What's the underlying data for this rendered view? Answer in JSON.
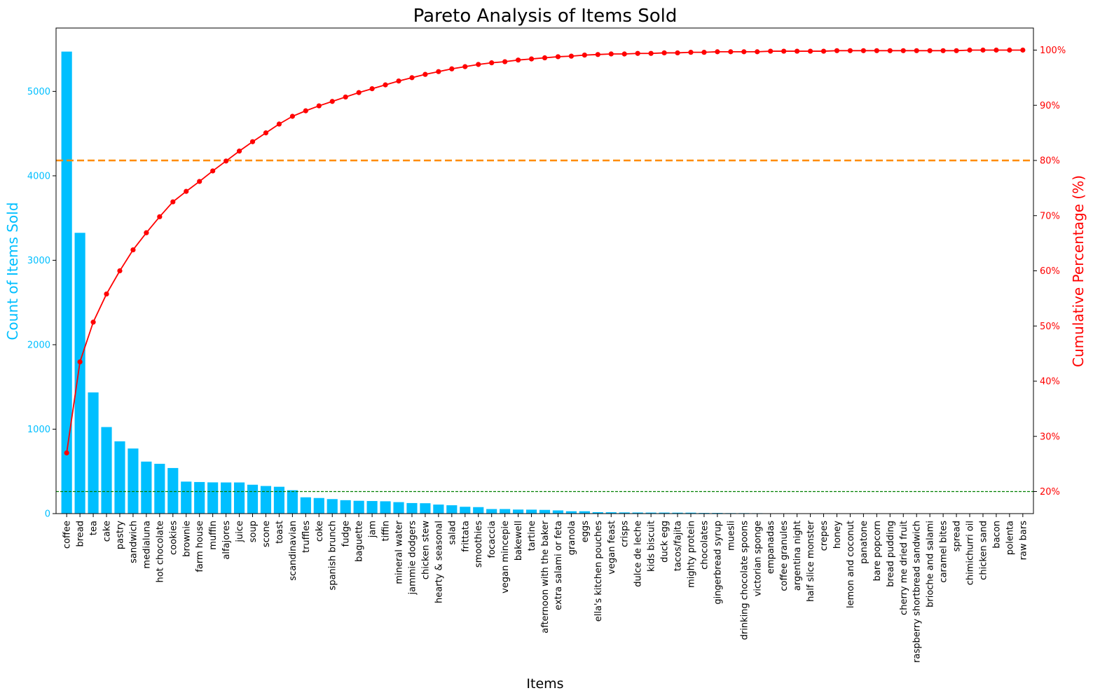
{
  "chart_data": {
    "type": "bar",
    "title": "Pareto Analysis of Items Sold",
    "xlabel": "Items",
    "ylabel": "Count of Items Sold",
    "y2label": "Cumulative Percentage (%)",
    "ylim": [
      0,
      5750
    ],
    "y2lim": [
      16,
      104
    ],
    "yticks": [
      "0",
      "1000",
      "2000",
      "3000",
      "4000",
      "5000"
    ],
    "y2ticks": [
      "20%",
      "30%",
      "40%",
      "50%",
      "60%",
      "70%",
      "80%",
      "90%",
      "100%"
    ],
    "threshold_percent": 80,
    "reference_percent": 20,
    "colors": {
      "bars": "#00bfff",
      "line": "#ff0000",
      "threshold": "#ff8c00",
      "reference": "#008000",
      "left_axis": "#00bfff",
      "right_axis": "#ff0000"
    },
    "categories": [
      "coffee",
      "bread",
      "tea",
      "cake",
      "pastry",
      "sandwich",
      "medialuna",
      "hot chocolate",
      "cookies",
      "brownie",
      "farm house",
      "muffin",
      "alfajores",
      "juice",
      "soup",
      "scone",
      "toast",
      "scandinavian",
      "truffles",
      "coke",
      "spanish brunch",
      "fudge",
      "baguette",
      "jam",
      "tiffin",
      "mineral water",
      "jammie dodgers",
      "chicken stew",
      "hearty & seasonal",
      "salad",
      "frittata",
      "smoothies",
      "focaccia",
      "vegan mincepie",
      "bakewell",
      "tartine",
      "afternoon with the baker",
      "extra salami or feta",
      "granola",
      "eggs",
      "ella's kitchen pouches",
      "vegan feast",
      "crisps",
      "dulce de leche",
      "kids biscuit",
      "duck egg",
      "tacos/fajita",
      "mighty protein",
      "chocolates",
      "gingerbread syrup",
      "muesli",
      "drinking chocolate spoons",
      "victorian sponge",
      "empanadas",
      "coffee granules",
      "argentina night",
      "half slice monster",
      "crepes",
      "honey",
      "lemon and coconut",
      "panatone",
      "bare popcorn",
      "bread pudding",
      "cherry me dried fruit",
      "raspberry shortbread sandwich",
      "brioche and salami",
      "caramel bites",
      "spread",
      "chimichurri oil",
      "chicken sand",
      "bacon",
      "polenta",
      "raw bars"
    ],
    "series": [
      {
        "type": "bar",
        "values": [
          5471,
          3325,
          1435,
          1025,
          856,
          771,
          616,
          590,
          540,
          379,
          374,
          370,
          369,
          369,
          342,
          327,
          318,
          277,
          193,
          185,
          172,
          159,
          152,
          149,
          146,
          136,
          125,
          123,
          107,
          99,
          81,
          77,
          54,
          54,
          48,
          47,
          44,
          38,
          28,
          28,
          17,
          16,
          14,
          13,
          12,
          12,
          11,
          11,
          8,
          8,
          6,
          6,
          5,
          4,
          4,
          3,
          3,
          2,
          2,
          2,
          2,
          2,
          2,
          2,
          2,
          2,
          2,
          2,
          2,
          1,
          1,
          1,
          1
        ]
      },
      {
        "type": "line",
        "values": [
          27.0,
          43.5,
          50.7,
          55.8,
          60.0,
          63.8,
          66.9,
          69.8,
          72.5,
          74.4,
          76.2,
          78.1,
          79.9,
          81.7,
          83.4,
          85.0,
          86.6,
          88.0,
          89.0,
          89.9,
          90.7,
          91.5,
          92.3,
          93.0,
          93.7,
          94.4,
          95.0,
          95.6,
          96.1,
          96.6,
          97.0,
          97.4,
          97.7,
          97.9,
          98.2,
          98.4,
          98.6,
          98.8,
          98.9,
          99.1,
          99.2,
          99.3,
          99.3,
          99.4,
          99.4,
          99.5,
          99.5,
          99.6,
          99.6,
          99.7,
          99.7,
          99.7,
          99.7,
          99.8,
          99.8,
          99.8,
          99.8,
          99.8,
          99.9,
          99.9,
          99.9,
          99.9,
          99.9,
          99.9,
          99.9,
          99.9,
          99.9,
          99.9,
          100.0,
          100.0,
          100.0,
          100.0,
          100.0
        ]
      }
    ]
  }
}
